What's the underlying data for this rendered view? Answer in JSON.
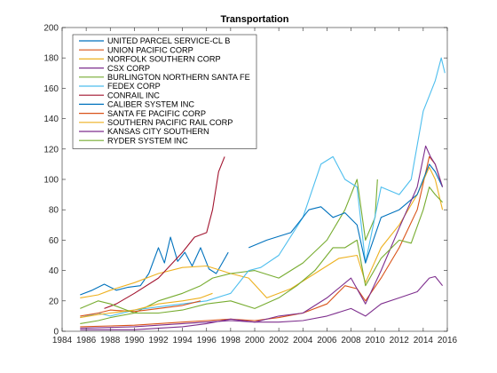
{
  "chart_data": {
    "type": "line",
    "title": "Transportation",
    "xlabel": "",
    "ylabel": "",
    "xlim": [
      1984,
      2016
    ],
    "ylim": [
      0,
      200
    ],
    "xticks": [
      1984,
      1986,
      1988,
      1990,
      1992,
      1994,
      1996,
      1998,
      2000,
      2002,
      2004,
      2006,
      2008,
      2010,
      2012,
      2014,
      2016
    ],
    "yticks": [
      0,
      20,
      40,
      60,
      80,
      100,
      120,
      140,
      160,
      180,
      200
    ],
    "grid": false,
    "legend_position": "top-left",
    "series": [
      {
        "name": "UNITED PARCEL SERVICE-CL B",
        "color": "#0072BD",
        "x": [
          1985.5,
          1986.5,
          1987.5,
          1988.5,
          1989.5,
          1990.5,
          1991.2,
          1992,
          1992.5,
          1993,
          1993.6,
          1994.2,
          1994.8,
          1995.5,
          1996.2,
          1996.8,
          1997.3,
          1997.8
        ],
        "y": [
          24,
          27,
          31,
          27,
          29,
          30,
          38,
          55,
          45,
          62,
          46,
          52,
          43,
          55,
          41,
          38,
          45,
          52
        ]
      },
      {
        "name": "UNION PACIFIC CORP",
        "color": "#D95319",
        "x": [
          1985.5,
          1988,
          1990,
          1992,
          1994,
          1996,
          1998,
          2000,
          2002,
          2004,
          2006,
          2007.5,
          2008.5,
          2009.2,
          2010.5,
          2012,
          2013.5,
          2014.5,
          2015,
          2015.6
        ],
        "y": [
          3,
          3.5,
          4,
          5,
          6,
          7,
          8,
          7,
          9,
          12,
          18,
          30,
          28,
          20,
          35,
          55,
          80,
          115,
          110,
          95
        ]
      },
      {
        "name": "NORFOLK SOUTHERN CORP",
        "color": "#EDB120",
        "x": [
          1985.5,
          1987,
          1988,
          1990,
          1992,
          1994,
          1996,
          1998,
          1999.5,
          2001,
          2003,
          2005,
          2007,
          2008.5,
          2009.2,
          2010.5,
          2012,
          2013.5,
          2014.5,
          2015,
          2015.6
        ],
        "y": [
          22,
          24,
          27,
          32,
          38,
          42,
          43,
          38,
          35,
          22,
          28,
          38,
          48,
          50,
          32,
          55,
          70,
          90,
          108,
          100,
          80
        ]
      },
      {
        "name": "CSX CORP",
        "color": "#7E2F8E",
        "x": [
          1985.5,
          1988,
          1990,
          1992,
          1994,
          1996,
          1998,
          2000,
          2002,
          2004,
          2006,
          2008,
          2009.2,
          2010.5,
          2012,
          2013.5,
          2014.5,
          2015,
          2015.6
        ],
        "y": [
          2,
          2.5,
          3,
          4,
          5,
          6,
          7,
          6,
          6,
          7,
          10,
          15,
          10,
          18,
          22,
          26,
          35,
          36,
          30
        ]
      },
      {
        "name": "BURLINGTON NORTHERN SANTA FE",
        "color": "#77AC30",
        "x": [
          1985.5,
          1987,
          1988,
          1990,
          1992,
          1994,
          1995.5,
          1996.5,
          1998,
          2000,
          2002,
          2004,
          2006,
          2007.5,
          2008.5,
          2009.2,
          2010,
          2010.2
        ],
        "y": [
          5,
          7,
          9,
          12,
          20,
          25,
          30,
          35,
          38,
          40,
          35,
          45,
          60,
          80,
          100,
          60,
          75,
          100
        ]
      },
      {
        "name": "FEDEX CORP",
        "color": "#4DBEEE",
        "x": [
          1985.5,
          1987,
          1988,
          1990,
          1992,
          1994,
          1996,
          1998,
          1999.5,
          2000.5,
          2002,
          2004,
          2005.5,
          2006.5,
          2007.5,
          2008.5,
          2009.2,
          2010.5,
          2012,
          2013,
          2014,
          2014.5,
          2015,
          2015.5,
          2015.8
        ],
        "y": [
          9,
          12,
          10,
          14,
          16,
          18,
          20,
          25,
          40,
          42,
          50,
          75,
          110,
          115,
          100,
          95,
          45,
          95,
          90,
          100,
          145,
          155,
          165,
          180,
          170
        ]
      },
      {
        "name": "CONRAIL INC",
        "color": "#A2142F",
        "x": [
          1987.5,
          1988.5,
          1990,
          1992,
          1994,
          1995,
          1996,
          1996.5,
          1997,
          1997.5
        ],
        "y": [
          15,
          18,
          25,
          35,
          52,
          62,
          65,
          80,
          105,
          115
        ]
      },
      {
        "name": "CALIBER SYSTEM INC",
        "color": "#0072BD",
        "x": [
          1999.5,
          2001,
          2003,
          2004.5,
          2005.5,
          2006.5,
          2007.5,
          2008.5,
          2009.2,
          2010.5,
          2012,
          2013.5,
          2014.5,
          2015,
          2015.6
        ],
        "y": [
          55,
          60,
          65,
          80,
          82,
          75,
          78,
          70,
          45,
          75,
          80,
          90,
          110,
          105,
          95
        ]
      },
      {
        "name": "SANTA FE PACIFIC CORP",
        "color": "#D95319",
        "x": [
          1985.5,
          1987,
          1988,
          1990,
          1992,
          1994,
          1995.5
        ],
        "y": [
          10,
          12,
          14,
          13,
          15,
          17,
          20
        ]
      },
      {
        "name": "SOUTHERN PACIFIC RAIL CORP",
        "color": "#EDB120",
        "x": [
          1985.5,
          1987,
          1988,
          1990,
          1992,
          1994,
          1995.5,
          1996.5
        ],
        "y": [
          9,
          11,
          12,
          14,
          18,
          20,
          22,
          25
        ]
      },
      {
        "name": "KANSAS CITY SOUTHERN",
        "color": "#7E2F8E",
        "x": [
          1985.5,
          1988,
          1990,
          1992,
          1994,
          1996,
          1998,
          2000,
          2002,
          2004,
          2006,
          2008,
          2009.2,
          2010.5,
          2012,
          2013.5,
          2014.2,
          2014.6,
          2015,
          2015.6
        ],
        "y": [
          1,
          1,
          1,
          2,
          3,
          5,
          8,
          6,
          10,
          12,
          22,
          35,
          18,
          40,
          68,
          95,
          122,
          115,
          110,
          95
        ]
      },
      {
        "name": "RYDER SYSTEM INC",
        "color": "#77AC30",
        "x": [
          1985.5,
          1987,
          1988,
          1990,
          1992,
          1994,
          1996,
          1998,
          2000,
          2002,
          2003.5,
          2005,
          2006.5,
          2007.5,
          2008.5,
          2009.2,
          2010.5,
          2012,
          2013,
          2014,
          2014.5,
          2015,
          2015.6
        ],
        "y": [
          15,
          20,
          18,
          12,
          12,
          14,
          18,
          20,
          15,
          22,
          30,
          40,
          55,
          55,
          60,
          30,
          48,
          60,
          58,
          80,
          95,
          90,
          85
        ]
      }
    ]
  }
}
